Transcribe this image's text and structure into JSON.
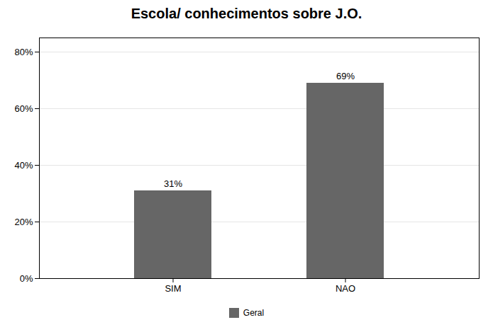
{
  "chart_data": {
    "type": "bar",
    "title": "Escola/ conhecimentos sobre J.O.",
    "categories": [
      "SIM",
      "NAO"
    ],
    "series": [
      {
        "name": "Geral",
        "color": "#666666",
        "values": [
          0.31,
          0.69
        ],
        "value_labels": [
          "31%",
          "69%"
        ]
      }
    ],
    "data_labels": true,
    "ylim": [
      0,
      0.85
    ],
    "yticks": [
      {
        "value": 0.0,
        "label": "0%"
      },
      {
        "value": 0.2,
        "label": "20%"
      },
      {
        "value": 0.4,
        "label": "40%"
      },
      {
        "value": 0.6,
        "label": "60%"
      },
      {
        "value": 0.8,
        "label": "80%"
      }
    ],
    "grid": true,
    "legend": "bottom"
  }
}
